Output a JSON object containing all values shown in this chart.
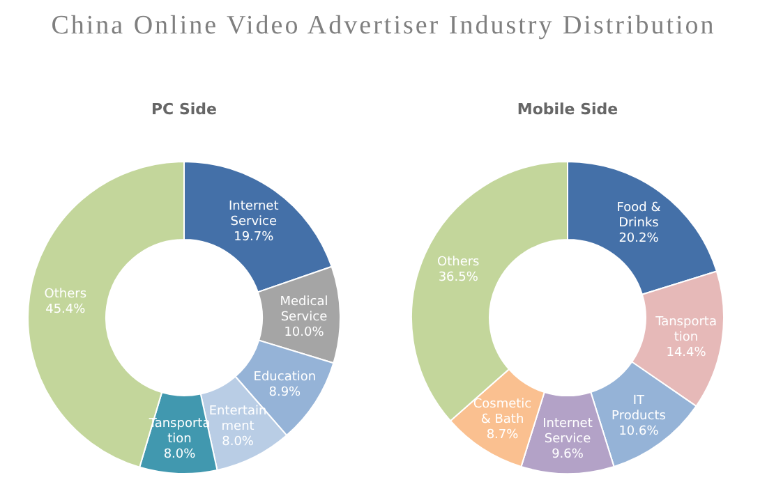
{
  "chart_data": [
    {
      "type": "donut",
      "title": "China Online Video Advertiser Industry Distribution",
      "subtitle": "PC Side",
      "data_labels": true,
      "categories": [
        "Internet Service",
        "Medical Service",
        "Education",
        "Entertainment",
        "Tansportation",
        "Others"
      ],
      "values": [
        19.7,
        10.0,
        8.9,
        8.0,
        8.0,
        45.4
      ],
      "value_labels": [
        "19.7%",
        "10.0%",
        "8.9%",
        "8.0%",
        "8.0%",
        "45.4%"
      ],
      "colors": [
        "#4470a8",
        "#a5a5a5",
        "#95b3d7",
        "#b9cde5",
        "#4198af",
        "#c3d69b"
      ]
    },
    {
      "type": "donut",
      "title": "Mobile Side",
      "data_labels": true,
      "categories": [
        "Food & Drinks",
        "Tansportation",
        "IT Products",
        "Internet Service",
        "Cosmetic & Bath",
        "Others"
      ],
      "values": [
        20.2,
        14.4,
        10.6,
        9.6,
        8.7,
        36.5
      ],
      "value_labels": [
        "20.2%",
        "14.4%",
        "10.6%",
        "9.6%",
        "8.7%",
        "36.5%"
      ],
      "colors": [
        "#4470a8",
        "#e6b9b8",
        "#95b3d7",
        "#b3a2c7",
        "#fac090",
        "#c3d69b"
      ]
    }
  ]
}
